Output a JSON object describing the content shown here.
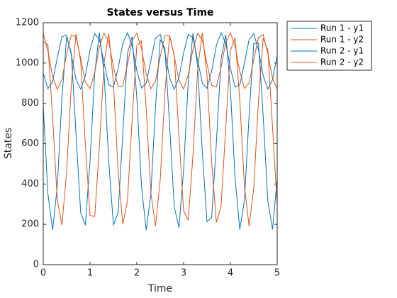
{
  "chart_data": {
    "type": "line",
    "title": "States versus Time",
    "xlabel": "Time",
    "ylabel": "States",
    "x": [
      0,
      0.1,
      0.2,
      0.3,
      0.4,
      0.5,
      0.6,
      0.7,
      0.8,
      0.9,
      1,
      1.1,
      1.2,
      1.3,
      1.4,
      1.5,
      1.6,
      1.7,
      1.8,
      1.9,
      2,
      2.1,
      2.2,
      2.3,
      2.4,
      2.5,
      2.6,
      2.7,
      2.8,
      2.9,
      3,
      3.1,
      3.2,
      3.3,
      3.4,
      3.5,
      3.6,
      3.7,
      3.8,
      3.9,
      4,
      4.1,
      4.2,
      4.3,
      4.4,
      4.5,
      4.6,
      4.7,
      4.8,
      4.9,
      5
    ],
    "series": [
      {
        "name": "Run 1 - y1",
        "color": "#0072bd",
        "values": [
          785,
          352,
          171,
          389,
          829,
          1131,
          1048,
          649,
          259,
          196,
          513,
          950,
          1150,
          950,
          513,
          196,
          258,
          648,
          1048,
          1131,
          829,
          389,
          171,
          352,
          785,
          1116,
          1074,
          694,
          286,
          184,
          470,
          912,
          1148,
          985,
          557,
          213,
          234,
          603,
          1019,
          1141,
          871,
          428,
          175,
          318,
          741,
          1098,
          1097,
          739,
          317,
          175,
          429
        ]
      },
      {
        "name": "Run 1 - y2",
        "color": "#d95319",
        "values": [
          1106,
          1090,
          731,
          322,
          197,
          459,
          892,
          1144,
          1009,
          597,
          244,
          239,
          586,
          1002,
          1146,
          901,
          468,
          200,
          316,
          721,
          1085,
          1110,
          776,
          354,
          192,
          419,
          852,
          1136,
          1039,
          641,
          266,
          222,
          543,
          968,
          1150,
          939,
          509,
          210,
          287,
          677,
          1061,
          1126,
          818,
          390,
          190,
          383,
          810,
          1123,
          1066,
          686,
          292
        ]
      },
      {
        "name": "Run 2 - y1",
        "color": "#0072bd",
        "values": [
          950,
          873,
          907,
          1026,
          1131,
          1138,
          1040,
          918,
          871,
          937,
          1064,
          1146,
          1117,
          1001,
          892,
          880,
          973,
          1097,
          1150,
          1088,
          962,
          876,
          899,
          1013,
          1124,
          1143,
          1053,
          928,
          870,
          927,
          1051,
          1142,
          1125,
          1014,
          900,
          875,
          961,
          1087,
          1150,
          1098,
          975,
          880,
          891,
          1000,
          1116,
          1146,
          1065,
          938,
          871,
          917,
          1039
        ]
      },
      {
        "name": "Run 2 - y2",
        "color": "#d95319",
        "values": [
          1145,
          1060,
          934,
          870,
          920,
          1044,
          1140,
          1130,
          1022,
          905,
          873,
          953,
          1080,
          1149,
          1105,
          983,
          883,
          887,
          992,
          1111,
          1148,
          1072,
          946,
          872,
          911,
          1031,
          1134,
          1136,
          1035,
          914,
          871,
          942,
          1069,
          1147,
          1114,
          996,
          889,
          881,
          979,
          1101,
          1150,
          1084,
          958,
          874,
          902,
          1018,
          1127,
          1141,
          1048,
          924,
          870
        ]
      }
    ],
    "xlim": [
      0,
      5
    ],
    "ylim": [
      0,
      1200
    ],
    "xticks": [
      0,
      1,
      2,
      3,
      4,
      5
    ],
    "yticks": [
      0,
      200,
      400,
      600,
      800,
      1000,
      1200
    ],
    "grid": false,
    "legend": "outside-top-right"
  }
}
